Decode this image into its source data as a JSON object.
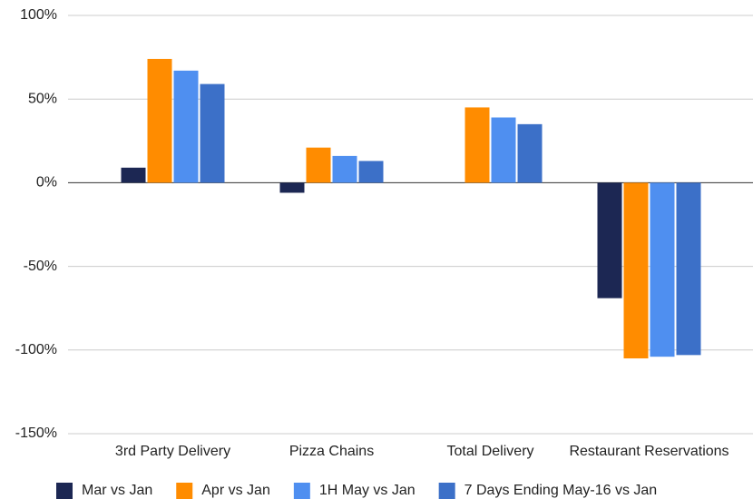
{
  "chart_data": {
    "type": "bar",
    "categories": [
      "3rd Party Delivery",
      "Pizza Chains",
      "Total Delivery",
      "Restaurant Reservations"
    ],
    "series": [
      {
        "name": "Mar vs Jan",
        "color": "#1c2753",
        "values": [
          9,
          -6,
          0,
          -69
        ]
      },
      {
        "name": "Apr vs Jan",
        "color": "#ff8c00",
        "values": [
          74,
          21,
          45,
          -105
        ]
      },
      {
        "name": "1H May vs Jan",
        "color": "#4f8ff0",
        "values": [
          67,
          16,
          39,
          -104
        ]
      },
      {
        "name": "7 Days Ending May-16 vs Jan",
        "color": "#3c70c8",
        "values": [
          59,
          13,
          35,
          -103
        ]
      }
    ],
    "ylim": [
      -150,
      100
    ],
    "yticks": [
      {
        "value": -150,
        "label": "-150%"
      },
      {
        "value": -100,
        "label": "-100%"
      },
      {
        "value": -50,
        "label": "-50%"
      },
      {
        "value": 0,
        "label": "0%"
      },
      {
        "value": 50,
        "label": "50%"
      },
      {
        "value": 100,
        "label": "100%"
      }
    ],
    "grid": true,
    "legend": "bottom"
  }
}
